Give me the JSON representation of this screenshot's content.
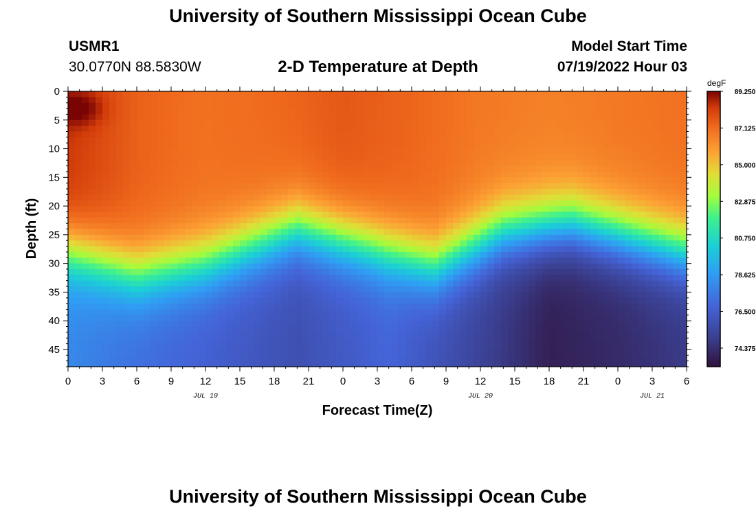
{
  "header": {
    "title": "University of Southern Mississippi Ocean Cube",
    "station_id": "USMR1",
    "coordinates": "30.0770N  88.5830W",
    "subtitle": "2-D Temperature at Depth",
    "model_start_label": "Model Start Time",
    "model_start_value": "07/19/2022 Hour 03"
  },
  "footer": {
    "title": "University of Southern Mississippi Ocean Cube"
  },
  "chart_data": {
    "type": "heatmap",
    "title": "2-D Temperature at Depth",
    "xlabel": "Forecast Time(Z)",
    "ylabel": "Depth (ft)",
    "x_tick_labels": [
      "0",
      "3",
      "6",
      "9",
      "12",
      "15",
      "18",
      "21",
      "0",
      "3",
      "6",
      "9",
      "12",
      "15",
      "18",
      "21",
      "0",
      "3",
      "6"
    ],
    "x_date_labels": [
      {
        "label": "JUL 19",
        "hour": 12
      },
      {
        "label": "JUL 20",
        "hour": 36
      },
      {
        "label": "JUL 21",
        "hour": 51
      }
    ],
    "x_range_hours": [
      0,
      54
    ],
    "y_tick_labels": [
      "0",
      "5",
      "10",
      "15",
      "20",
      "25",
      "30",
      "35",
      "40",
      "45"
    ],
    "y_range_ft": [
      0,
      48
    ],
    "colorbar": {
      "unit": "degF",
      "min": 73.3,
      "max": 89.25,
      "tick_labels": [
        "89.250",
        "87.125",
        "85.000",
        "82.875",
        "80.750",
        "78.625",
        "76.500",
        "74.375"
      ],
      "tick_values": [
        89.25,
        87.125,
        85.0,
        82.875,
        80.75,
        78.625,
        76.5,
        74.375
      ]
    },
    "thermocline_depth_ft": [
      {
        "hour": 0,
        "depth": 24
      },
      {
        "hour": 6,
        "depth": 28
      },
      {
        "hour": 12,
        "depth": 26
      },
      {
        "hour": 20,
        "depth": 20
      },
      {
        "hour": 26,
        "depth": 23
      },
      {
        "hour": 32,
        "depth": 26.5
      },
      {
        "hour": 38,
        "depth": 20.5
      },
      {
        "hour": 44,
        "depth": 19
      },
      {
        "hour": 54,
        "depth": 24
      }
    ],
    "bottom_temperature_degF": [
      {
        "hour": 0,
        "value": 78.0
      },
      {
        "hour": 6,
        "value": 77.2
      },
      {
        "hour": 12,
        "value": 76.6
      },
      {
        "hour": 20,
        "value": 75.8
      },
      {
        "hour": 28,
        "value": 76.8
      },
      {
        "hour": 36,
        "value": 75.2
      },
      {
        "hour": 42,
        "value": 73.8
      },
      {
        "hour": 48,
        "value": 74.2
      },
      {
        "hour": 54,
        "value": 74.8
      }
    ],
    "surface_temperature_degF": [
      {
        "hour": 0,
        "value": 88.4
      },
      {
        "hour": 6,
        "value": 87.4
      },
      {
        "hour": 12,
        "value": 87.0
      },
      {
        "hour": 18,
        "value": 87.2
      },
      {
        "hour": 24,
        "value": 87.6
      },
      {
        "hour": 30,
        "value": 87.3
      },
      {
        "hour": 36,
        "value": 86.8
      },
      {
        "hour": 42,
        "value": 86.6
      },
      {
        "hour": 48,
        "value": 86.8
      },
      {
        "hour": 54,
        "value": 87.0
      }
    ],
    "hot_spot": {
      "hour": 1,
      "depth": 3,
      "value": 89.25
    }
  }
}
